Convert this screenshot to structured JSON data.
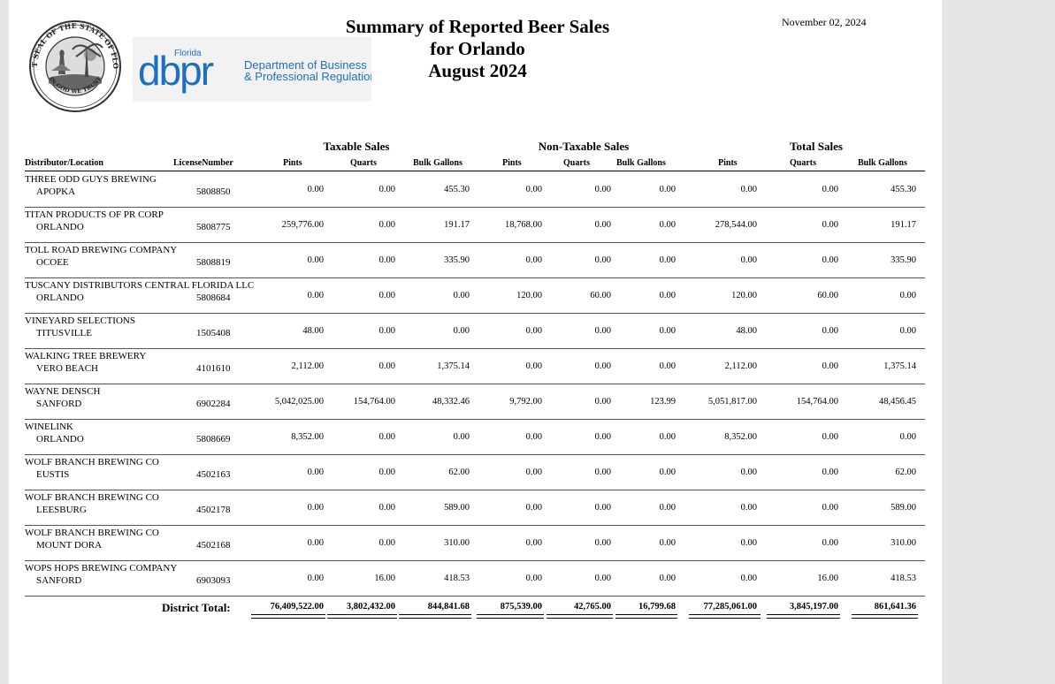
{
  "header": {
    "title_line1": "Summary of Reported Beer Sales",
    "title_line2": "for Orlando",
    "title_line3": "August 2024",
    "date": "November 02, 2024"
  },
  "seal": {
    "text": "GREAT SEAL OF THE STATE OF FLORIDA",
    "motto": "IN GOD WE TRUST"
  },
  "logo": {
    "florida": "Florida",
    "mark": "dbpr",
    "dept_line1": "Department of Business",
    "dept_line2": "& Professional Regulation",
    "brand_color": "#1f6fc1"
  },
  "groups": {
    "taxable": "Taxable Sales",
    "non_taxable": "Non-Taxable Sales",
    "total": "Total Sales"
  },
  "columns": {
    "distributor": "Distributor/Location",
    "license": "LicenseNumber",
    "pints": "Pints",
    "quarts": "Quarts",
    "bulk": "Bulk Gallons"
  },
  "rows": [
    {
      "name": "THREE ODD GUYS BREWING",
      "location": "APOPKA",
      "license": "5808850",
      "values": [
        "0.00",
        "0.00",
        "455.30",
        "0.00",
        "0.00",
        "0.00",
        "0.00",
        "0.00",
        "455.30"
      ]
    },
    {
      "name": "TITAN PRODUCTS OF PR CORP",
      "location": "ORLANDO",
      "license": "5808775",
      "values": [
        "259,776.00",
        "0.00",
        "191.17",
        "18,768.00",
        "0.00",
        "0.00",
        "278,544.00",
        "0.00",
        "191.17"
      ]
    },
    {
      "name": "TOLL ROAD BREWING COMPANY",
      "location": "OCOEE",
      "license": "5808819",
      "values": [
        "0.00",
        "0.00",
        "335.90",
        "0.00",
        "0.00",
        "0.00",
        "0.00",
        "0.00",
        "335.90"
      ]
    },
    {
      "name": "TUSCANY DISTRIBUTORS CENTRAL FLORIDA LLC",
      "location": "ORLANDO",
      "license": "5808684",
      "values": [
        "0.00",
        "0.00",
        "0.00",
        "120.00",
        "60.00",
        "0.00",
        "120.00",
        "60.00",
        "0.00"
      ]
    },
    {
      "name": "VINEYARD SELECTIONS",
      "location": "TITUSVILLE",
      "license": "1505408",
      "values": [
        "48.00",
        "0.00",
        "0.00",
        "0.00",
        "0.00",
        "0.00",
        "48.00",
        "0.00",
        "0.00"
      ]
    },
    {
      "name": "WALKING TREE BREWERY",
      "location": "VERO BEACH",
      "license": "4101610",
      "values": [
        "2,112.00",
        "0.00",
        "1,375.14",
        "0.00",
        "0.00",
        "0.00",
        "2,112.00",
        "0.00",
        "1,375.14"
      ]
    },
    {
      "name": "WAYNE DENSCH",
      "location": "SANFORD",
      "license": "6902284",
      "values": [
        "5,042,025.00",
        "154,764.00",
        "48,332.46",
        "9,792.00",
        "0.00",
        "123.99",
        "5,051,817.00",
        "154,764.00",
        "48,456.45"
      ]
    },
    {
      "name": "WINELINK",
      "location": "ORLANDO",
      "license": "5808669",
      "values": [
        "8,352.00",
        "0.00",
        "0.00",
        "0.00",
        "0.00",
        "0.00",
        "8,352.00",
        "0.00",
        "0.00"
      ]
    },
    {
      "name": "WOLF BRANCH BREWING CO",
      "location": "EUSTIS",
      "license": "4502163",
      "values": [
        "0.00",
        "0.00",
        "62.00",
        "0.00",
        "0.00",
        "0.00",
        "0.00",
        "0.00",
        "62.00"
      ]
    },
    {
      "name": "WOLF BRANCH BREWING CO",
      "location": "LEESBURG",
      "license": "4502178",
      "values": [
        "0.00",
        "0.00",
        "589.00",
        "0.00",
        "0.00",
        "0.00",
        "0.00",
        "0.00",
        "589.00"
      ]
    },
    {
      "name": "WOLF BRANCH BREWING CO",
      "location": "MOUNT DORA",
      "license": "4502168",
      "values": [
        "0.00",
        "0.00",
        "310.00",
        "0.00",
        "0.00",
        "0.00",
        "0.00",
        "0.00",
        "310.00"
      ]
    },
    {
      "name": "WOPS HOPS BREWING COMPANY",
      "location": "SANFORD",
      "license": "6903093",
      "values": [
        "0.00",
        "16.00",
        "418.53",
        "0.00",
        "0.00",
        "0.00",
        "0.00",
        "16.00",
        "418.53"
      ]
    }
  ],
  "totals": {
    "label": "District Total:",
    "values": [
      "76,409,522.00",
      "3,802,432.00",
      "844,841.68",
      "875,539.00",
      "42,765.00",
      "16,799.68",
      "77,285,061.00",
      "3,845,197.00",
      "861,641.36"
    ]
  }
}
